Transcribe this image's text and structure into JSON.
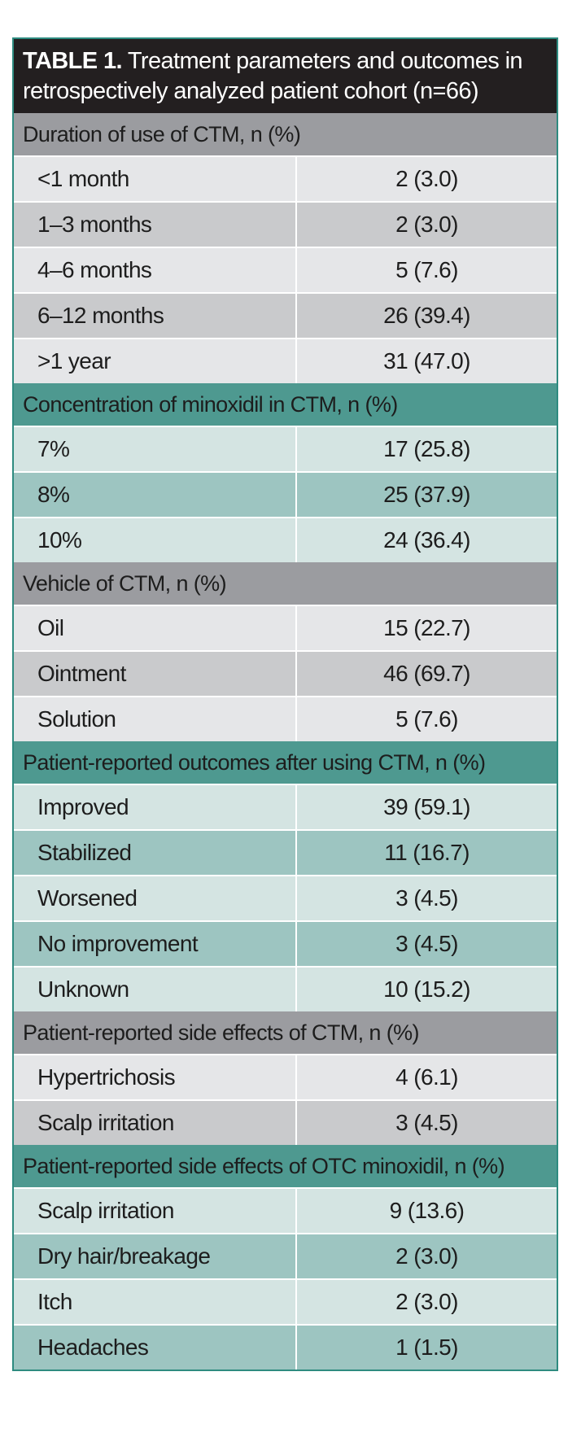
{
  "title": {
    "label": "TABLE 1.",
    "text": "Treatment parameters and outcomes in retrospectively analyzed patient cohort (n=66)"
  },
  "sections": [
    {
      "header": "Duration of use of CTM, n (%)",
      "theme": "gray",
      "rows": [
        {
          "label": "<1 month",
          "value": "2 (3.0)"
        },
        {
          "label": "1–3 months",
          "value": "2 (3.0)"
        },
        {
          "label": "4–6 months",
          "value": "5 (7.6)"
        },
        {
          "label": "6–12 months",
          "value": "26 (39.4)"
        },
        {
          "label": ">1 year",
          "value": "31 (47.0)"
        }
      ]
    },
    {
      "header": "Concentration of minoxidil in CTM, n (%)",
      "theme": "teal",
      "rows": [
        {
          "label": "7%",
          "value": "17 (25.8)"
        },
        {
          "label": "8%",
          "value": "25 (37.9)"
        },
        {
          "label": "10%",
          "value": "24 (36.4)"
        }
      ]
    },
    {
      "header": "Vehicle of CTM, n (%)",
      "theme": "gray",
      "rows": [
        {
          "label": "Oil",
          "value": "15 (22.7)"
        },
        {
          "label": "Ointment",
          "value": "46 (69.7)"
        },
        {
          "label": "Solution",
          "value": "5 (7.6)"
        }
      ]
    },
    {
      "header": "Patient-reported outcomes after using CTM, n (%)",
      "theme": "teal",
      "rows": [
        {
          "label": "Improved",
          "value": "39 (59.1)"
        },
        {
          "label": "Stabilized",
          "value": "11 (16.7)"
        },
        {
          "label": "Worsened",
          "value": "3 (4.5)"
        },
        {
          "label": "No improvement",
          "value": "3 (4.5)"
        },
        {
          "label": "Unknown",
          "value": "10 (15.2)"
        }
      ]
    },
    {
      "header": "Patient-reported side effects of CTM, n (%)",
      "theme": "gray",
      "rows": [
        {
          "label": "Hypertrichosis",
          "value": "4 (6.1)"
        },
        {
          "label": "Scalp irritation",
          "value": "3 (4.5)"
        }
      ]
    },
    {
      "header": "Patient-reported side effects of OTC minoxidil, n (%)",
      "theme": "teal",
      "rows": [
        {
          "label": "Scalp irritation",
          "value": "9 (13.6)"
        },
        {
          "label": "Dry hair/breakage",
          "value": "2 (3.0)"
        },
        {
          "label": "Itch",
          "value": "2 (3.0)"
        },
        {
          "label": "Headaches",
          "value": "1 (1.5)"
        }
      ]
    }
  ],
  "colors": {
    "title_bg": "#231f20",
    "gray_header": "#9b9ca0",
    "gray_row_light": "#e5e6e8",
    "gray_row_dark": "#c9cacc",
    "teal_header": "#4e9990",
    "teal_row_light": "#d4e4e2",
    "teal_row_dark": "#9dc5c1",
    "border": "#2e8b80"
  }
}
